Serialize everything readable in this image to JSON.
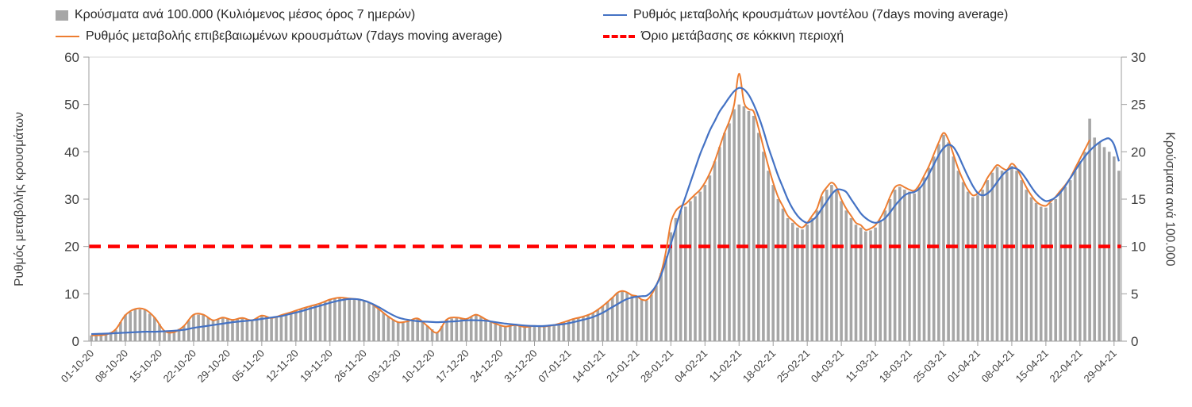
{
  "legend": {
    "items": [
      {
        "label": "Κρούσματα ανά 100.000 (Κυλιόμενος μέσος όρος 7 ημερών)",
        "type": "bar",
        "color": "#a6a6a6"
      },
      {
        "label": "Ρυθμός μεταβολής κρουσμάτων μοντέλου (7days moving average)",
        "type": "line",
        "color": "#4472c4"
      },
      {
        "label": "Ρυθμός μεταβολής επιβεβαιωμένων κρουσμάτων (7days moving average)",
        "type": "line",
        "color": "#ed7d31"
      },
      {
        "label": "Όριο μετάβασης σε κόκκινη περιοχή",
        "type": "dashed",
        "color": "#ff0000"
      }
    ]
  },
  "chart_data": {
    "type": "combo-bar-line",
    "left_axis": {
      "label": "Ρυθμός μεταβολής κρουσμάτων",
      "min": 0,
      "max": 60,
      "tick_step": 10,
      "ticks": [
        0,
        10,
        20,
        30,
        40,
        50,
        60
      ]
    },
    "right_axis": {
      "label": "Κρούσματα ανά 100.000",
      "min": 0,
      "max": 30,
      "tick_step": 5,
      "ticks": [
        0,
        5,
        10,
        15,
        20,
        25,
        30
      ]
    },
    "x_tick_labels": [
      "01-10-20",
      "08-10-20",
      "15-10-20",
      "22-10-20",
      "29-10-20",
      "05-11-20",
      "12-11-20",
      "19-11-20",
      "26-11-20",
      "03-12-20",
      "10-12-20",
      "17-12-20",
      "24-12-20",
      "31-12-20",
      "07-01-21",
      "14-01-21",
      "21-01-21",
      "28-01-21",
      "04-02-21",
      "11-02-21",
      "18-02-21",
      "25-02-21",
      "04-03-21",
      "11-03-21",
      "18-03-21",
      "25-03-21",
      "01-04-21",
      "08-04-21",
      "15-04-21",
      "22-04-21",
      "29-04-21"
    ],
    "x_tick_step_days": 7,
    "total_days": 212,
    "threshold": {
      "label": "Όριο μετάβασης σε κόκκινη περιοχή",
      "axis": "left",
      "value": 20,
      "color": "#ff0000"
    },
    "series": [
      {
        "name": "Κρούσματα ανά 100.000 (Κυλιόμενος μέσος όρος 7 ημερών)",
        "type": "bar",
        "axis": "right",
        "color": "#a6a6a6"
      },
      {
        "name": "Ρυθμός μεταβολής κρουσμάτων μοντέλου (7days moving average)",
        "type": "line",
        "axis": "left",
        "color": "#4472c4"
      },
      {
        "name": "Ρυθμός μεταβολής επιβεβαιωμένων κρουσμάτων (7days moving average)",
        "type": "line",
        "axis": "left",
        "color": "#ed7d31"
      }
    ],
    "samples_columns": [
      "day_index",
      "confirmed_rate_left_axis",
      "model_rate_left_axis",
      "cases_per_100k_right_axis"
    ],
    "samples": [
      [
        0,
        1.2,
        1.5,
        0.6
      ],
      [
        3,
        1.4,
        1.6,
        0.7
      ],
      [
        5,
        2.5,
        1.7,
        1.2
      ],
      [
        7,
        5.5,
        1.8,
        2.8
      ],
      [
        9,
        6.8,
        1.9,
        3.4
      ],
      [
        11,
        6.7,
        2.0,
        3.3
      ],
      [
        13,
        5.0,
        2.0,
        2.5
      ],
      [
        15,
        2.2,
        2.1,
        1.1
      ],
      [
        17,
        1.9,
        2.2,
        1.0
      ],
      [
        19,
        3.2,
        2.4,
        1.6
      ],
      [
        21,
        5.6,
        2.8,
        2.8
      ],
      [
        23,
        5.6,
        3.1,
        2.8
      ],
      [
        25,
        4.4,
        3.4,
        2.2
      ],
      [
        27,
        5.0,
        3.7,
        2.5
      ],
      [
        29,
        4.5,
        4.0,
        2.3
      ],
      [
        31,
        4.9,
        4.2,
        2.4
      ],
      [
        33,
        4.4,
        4.4,
        2.2
      ],
      [
        35,
        5.4,
        4.7,
        2.7
      ],
      [
        37,
        4.9,
        5.0,
        2.5
      ],
      [
        39,
        5.5,
        5.3,
        2.8
      ],
      [
        41,
        6.1,
        5.8,
        3.0
      ],
      [
        43,
        6.8,
        6.3,
        3.4
      ],
      [
        45,
        7.4,
        6.9,
        3.7
      ],
      [
        47,
        8.0,
        7.5,
        4.0
      ],
      [
        49,
        8.8,
        8.1,
        4.4
      ],
      [
        51,
        9.2,
        8.6,
        4.6
      ],
      [
        53,
        9.0,
        8.9,
        4.5
      ],
      [
        55,
        8.8,
        8.8,
        4.4
      ],
      [
        57,
        8.2,
        8.2,
        4.1
      ],
      [
        59,
        6.8,
        7.2,
        3.4
      ],
      [
        61,
        5.2,
        6.0,
        2.6
      ],
      [
        63,
        4.0,
        5.0,
        2.0
      ],
      [
        65,
        4.2,
        4.5,
        2.1
      ],
      [
        67,
        4.8,
        4.2,
        2.4
      ],
      [
        69,
        3.2,
        4.1,
        1.6
      ],
      [
        71,
        1.8,
        4.0,
        0.9
      ],
      [
        73,
        4.6,
        4.1,
        2.3
      ],
      [
        75,
        5.0,
        4.2,
        2.5
      ],
      [
        77,
        4.7,
        4.4,
        2.3
      ],
      [
        79,
        5.6,
        4.4,
        2.8
      ],
      [
        81,
        4.6,
        4.3,
        2.3
      ],
      [
        83,
        3.7,
        4.0,
        1.8
      ],
      [
        85,
        3.1,
        3.7,
        1.5
      ],
      [
        87,
        3.4,
        3.5,
        1.7
      ],
      [
        89,
        3.0,
        3.3,
        1.5
      ],
      [
        91,
        3.2,
        3.2,
        1.6
      ],
      [
        93,
        3.1,
        3.2,
        1.5
      ],
      [
        95,
        3.4,
        3.4,
        1.7
      ],
      [
        97,
        4.0,
        3.6,
        2.0
      ],
      [
        99,
        4.7,
        4.0,
        2.3
      ],
      [
        101,
        5.2,
        4.5,
        2.6
      ],
      [
        103,
        6.0,
        5.1,
        3.0
      ],
      [
        105,
        7.4,
        6.0,
        3.7
      ],
      [
        107,
        9.2,
        7.2,
        4.6
      ],
      [
        108,
        10.2,
        7.8,
        5.1
      ],
      [
        109,
        10.6,
        8.4,
        5.3
      ],
      [
        110,
        10.3,
        8.9,
        5.1
      ],
      [
        111,
        9.7,
        9.2,
        4.8
      ],
      [
        112,
        9.5,
        9.4,
        4.7
      ],
      [
        113,
        8.8,
        9.5,
        4.4
      ],
      [
        114,
        8.7,
        9.6,
        4.3
      ],
      [
        115,
        9.8,
        10.4,
        4.9
      ],
      [
        116,
        11.8,
        11.8,
        5.9
      ],
      [
        117,
        14.5,
        14.0,
        7.2
      ],
      [
        118,
        19.0,
        17.0,
        9.0
      ],
      [
        119,
        25.0,
        20.5,
        11.5
      ],
      [
        120,
        27.5,
        24.0,
        13.0
      ],
      [
        121,
        28.5,
        27.5,
        13.8
      ],
      [
        122,
        29.0,
        30.5,
        14.2
      ],
      [
        123,
        30.0,
        33.5,
        14.8
      ],
      [
        124,
        31.0,
        36.5,
        15.3
      ],
      [
        125,
        32.0,
        39.5,
        15.8
      ],
      [
        126,
        33.5,
        42.0,
        16.5
      ],
      [
        127,
        35.5,
        44.5,
        17.5
      ],
      [
        128,
        38.0,
        46.5,
        19.0
      ],
      [
        129,
        41.0,
        48.5,
        20.5
      ],
      [
        130,
        44.0,
        50.0,
        22.0
      ],
      [
        131,
        46.5,
        51.5,
        23.0
      ],
      [
        132,
        50.0,
        52.8,
        24.5
      ],
      [
        133,
        56.5,
        53.5,
        25.0
      ],
      [
        134,
        50.5,
        53.2,
        24.8
      ],
      [
        135,
        49.0,
        52.0,
        24.3
      ],
      [
        136,
        48.5,
        50.0,
        23.8
      ],
      [
        137,
        45.0,
        47.5,
        22.0
      ],
      [
        138,
        41.0,
        44.5,
        20.0
      ],
      [
        139,
        37.0,
        41.0,
        18.0
      ],
      [
        140,
        33.5,
        38.0,
        16.5
      ],
      [
        141,
        30.5,
        35.0,
        15.0
      ],
      [
        142,
        28.5,
        32.5,
        14.0
      ],
      [
        143,
        26.5,
        30.0,
        13.0
      ],
      [
        144,
        25.5,
        28.0,
        12.5
      ],
      [
        145,
        24.5,
        26.5,
        12.0
      ],
      [
        146,
        24.0,
        25.5,
        11.8
      ],
      [
        147,
        25.0,
        25.0,
        12.3
      ],
      [
        148,
        26.5,
        25.5,
        13.0
      ],
      [
        149,
        28.0,
        26.5,
        13.8
      ],
      [
        150,
        31.0,
        28.0,
        15.3
      ],
      [
        151,
        32.5,
        29.5,
        16.0
      ],
      [
        152,
        33.5,
        31.0,
        16.5
      ],
      [
        153,
        32.5,
        32.0,
        16.0
      ],
      [
        154,
        30.0,
        32.0,
        14.8
      ],
      [
        155,
        28.0,
        31.5,
        13.8
      ],
      [
        156,
        26.5,
        30.0,
        13.0
      ],
      [
        157,
        25.0,
        28.5,
        12.3
      ],
      [
        158,
        24.5,
        27.0,
        12.0
      ],
      [
        159,
        23.5,
        26.0,
        11.6
      ],
      [
        160,
        23.8,
        25.3,
        11.7
      ],
      [
        161,
        24.5,
        25.0,
        12.0
      ],
      [
        162,
        26.0,
        25.3,
        12.8
      ],
      [
        163,
        28.0,
        26.0,
        13.8
      ],
      [
        164,
        30.5,
        27.2,
        15.0
      ],
      [
        165,
        32.5,
        28.6,
        16.0
      ],
      [
        166,
        33.0,
        29.8,
        16.3
      ],
      [
        167,
        32.5,
        30.8,
        16.0
      ],
      [
        168,
        32.0,
        31.3,
        15.8
      ],
      [
        169,
        31.8,
        31.5,
        15.6
      ],
      [
        170,
        33.0,
        32.2,
        16.3
      ],
      [
        171,
        35.0,
        33.5,
        17.3
      ],
      [
        172,
        37.0,
        35.3,
        18.3
      ],
      [
        173,
        39.5,
        37.3,
        19.5
      ],
      [
        174,
        42.0,
        39.3,
        20.8
      ],
      [
        175,
        44.0,
        40.8,
        21.8
      ],
      [
        176,
        42.5,
        41.5,
        21.0
      ],
      [
        177,
        39.5,
        41.0,
        19.5
      ],
      [
        178,
        36.5,
        39.3,
        18.0
      ],
      [
        179,
        34.0,
        37.0,
        16.8
      ],
      [
        180,
        32.0,
        34.8,
        15.8
      ],
      [
        181,
        30.8,
        32.8,
        15.2
      ],
      [
        182,
        31.2,
        31.3,
        15.4
      ],
      [
        183,
        32.5,
        30.8,
        16.0
      ],
      [
        184,
        34.5,
        31.2,
        17.0
      ],
      [
        185,
        36.0,
        32.2,
        17.8
      ],
      [
        186,
        37.2,
        33.6,
        18.4
      ],
      [
        187,
        36.6,
        35.0,
        18.0
      ],
      [
        188,
        36.2,
        36.0,
        17.9
      ],
      [
        189,
        37.5,
        36.6,
        18.5
      ],
      [
        190,
        36.5,
        36.4,
        18.0
      ],
      [
        191,
        34.5,
        35.6,
        17.0
      ],
      [
        192,
        32.5,
        34.2,
        16.0
      ],
      [
        193,
        30.8,
        32.6,
        15.2
      ],
      [
        194,
        29.5,
        31.2,
        14.6
      ],
      [
        195,
        28.8,
        30.2,
        14.2
      ],
      [
        196,
        28.6,
        29.6,
        14.1
      ],
      [
        197,
        29.5,
        29.8,
        14.6
      ],
      [
        198,
        30.5,
        30.4,
        15.0
      ],
      [
        199,
        31.8,
        31.4,
        15.7
      ],
      [
        200,
        33.0,
        32.8,
        16.3
      ],
      [
        201,
        34.5,
        34.4,
        17.0
      ],
      [
        202,
        36.5,
        36.0,
        18.0
      ],
      [
        203,
        38.5,
        37.6,
        19.0
      ],
      [
        204,
        40.5,
        39.0,
        20.0
      ],
      [
        205,
        42.5,
        40.2,
        23.5
      ],
      [
        206,
        null,
        41.2,
        21.5
      ],
      [
        207,
        null,
        42.0,
        21.0
      ],
      [
        208,
        null,
        42.6,
        20.5
      ],
      [
        209,
        null,
        42.8,
        20.0
      ],
      [
        210,
        null,
        41.5,
        19.5
      ],
      [
        211,
        null,
        38.0,
        18.0
      ]
    ]
  }
}
